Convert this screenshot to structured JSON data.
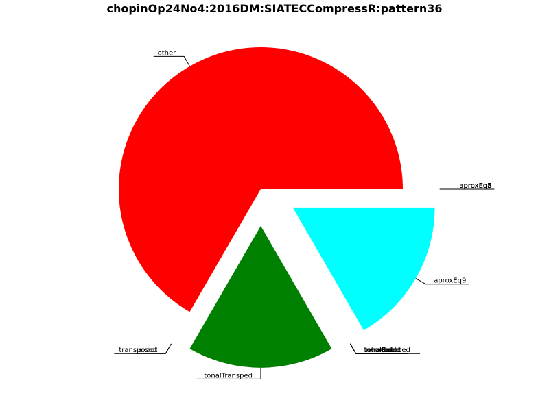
{
  "chart_data": {
    "type": "pie",
    "title": "chopinOp24No4:2016DM:SIATECCompressR:pattern36",
    "slices": [
      {
        "label": "other",
        "value": 0.6667,
        "color": "#ff0000",
        "exploded": false
      },
      {
        "label": "exact",
        "value": 0.0,
        "color": "#ffffff",
        "exploded": true
      },
      {
        "label": "transposed",
        "value": 0.0,
        "color": "#ffffff",
        "exploded": true
      },
      {
        "label": "tonalTransped",
        "value": 0.1667,
        "color": "#008000",
        "exploded": true
      },
      {
        "label": "tonalExact",
        "value": 0.0,
        "color": "#ffffff",
        "exploded": true
      },
      {
        "label": "tonalRetro",
        "value": 0.0,
        "color": "#ffffff",
        "exploded": true
      },
      {
        "label": "retrograde",
        "value": 0.0,
        "color": "#ffffff",
        "exploded": true
      },
      {
        "label": "inverted",
        "value": 0.0,
        "color": "#ffffff",
        "exploded": true
      },
      {
        "label": "tonalInverted",
        "value": 0.0,
        "color": "#ffffff",
        "exploded": true
      },
      {
        "label": "aproxEq9",
        "value": 0.1667,
        "color": "#00ffff",
        "exploded": true
      },
      {
        "label": "aproxEq8",
        "value": 0.0,
        "color": "#ffffff",
        "exploded": true
      },
      {
        "label": "aproxEq5",
        "value": 0.0,
        "color": "#ffffff",
        "exploded": true
      },
      {
        "label": "aproxEq3",
        "value": 0.0,
        "color": "#ffffff",
        "exploded": true
      }
    ],
    "legend": "none"
  }
}
